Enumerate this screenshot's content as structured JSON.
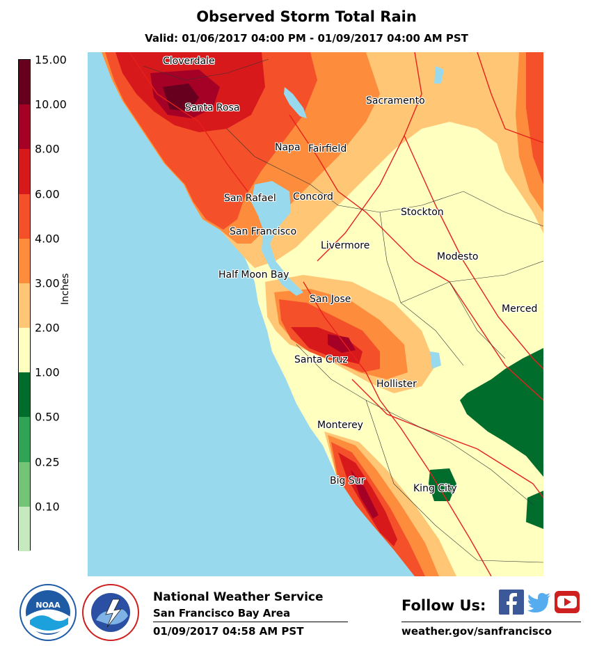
{
  "title": "Observed Storm Total Rain",
  "subtitle": "Valid: 01/06/2017 04:00 PM - 01/09/2017 04:00 AM PST",
  "legend": {
    "axis_label": "Inches",
    "ticks": [
      "15.00",
      "10.00",
      "8.00",
      "6.00",
      "4.00",
      "3.00",
      "2.00",
      "1.00",
      "0.50",
      "0.25",
      "0.10"
    ],
    "colors": [
      "#67001f",
      "#a50026",
      "#d7191c",
      "#f4502a",
      "#fd8d3c",
      "#fec675",
      "#ffffc0",
      "#006d2c",
      "#31a354",
      "#74c476",
      "#c7e9c0"
    ]
  },
  "map_colors": {
    "ocean": "#99d9ee",
    "level_1_2": "#ffffc0",
    "level_2_3": "#fec675",
    "level_3_4": "#fd8d3c",
    "level_4_6": "#f4502a",
    "level_6_8": "#d7191c",
    "level_8_10": "#a50026",
    "level_10_15": "#67001f",
    "level_05_1": "#006d2c",
    "highway": "#e8201c",
    "county_line": "#333333"
  },
  "cities": [
    {
      "name": "Cloverdale"
    },
    {
      "name": "Santa Rosa"
    },
    {
      "name": "Sacramento"
    },
    {
      "name": "Napa"
    },
    {
      "name": "Fairfield"
    },
    {
      "name": "San Rafael"
    },
    {
      "name": "Concord"
    },
    {
      "name": "Stockton"
    },
    {
      "name": "San Francisco"
    },
    {
      "name": "Livermore"
    },
    {
      "name": "Modesto"
    },
    {
      "name": "Half Moon Bay"
    },
    {
      "name": "San Jose"
    },
    {
      "name": "Merced"
    },
    {
      "name": "Santa Cruz"
    },
    {
      "name": "Hollister"
    },
    {
      "name": "Monterey"
    },
    {
      "name": "Big Sur"
    },
    {
      "name": "King City"
    }
  ],
  "footer": {
    "org": "National Weather Service",
    "area": "San Francisco Bay Area",
    "issued": "01/09/2017 04:58 AM PST",
    "follow": "Follow Us:",
    "website": "weather.gov/sanfrancisco"
  },
  "logos": {
    "noaa": "NOAA",
    "nws_ring": "NATIONAL WEATHER SERVICE",
    "noaa_ring": "NATIONAL OCEANIC AND ATMOSPHERIC ADMINISTRATION U.S. DEPARTMENT OF COMMERCE"
  },
  "social": [
    {
      "icon": "facebook-icon",
      "color": "#3b5998"
    },
    {
      "icon": "twitter-icon",
      "color": "#55acee"
    },
    {
      "icon": "youtube-icon",
      "color": "#cd201f"
    }
  ]
}
